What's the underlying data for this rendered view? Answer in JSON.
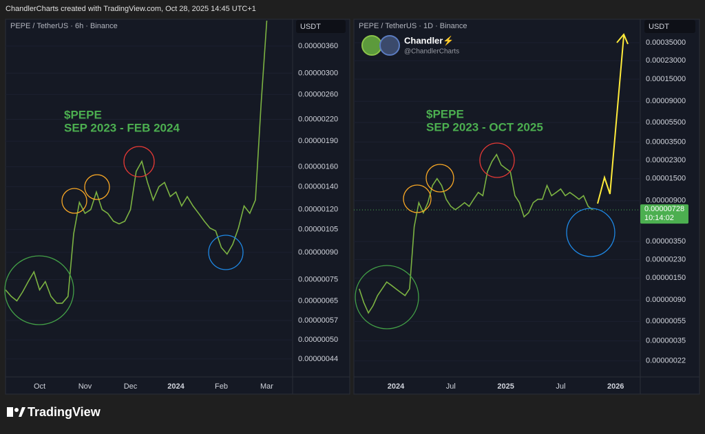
{
  "header": "ChandlerCharts created with TradingView.com, Oct 28, 2025 14:45 UTC+1",
  "footer_logo": "TradingView",
  "author": {
    "name": "Chandler⚡",
    "handle": "@ChandlerCharts"
  },
  "chart_data": [
    {
      "type": "line",
      "title": "PEPE / TetherUS · 6h · Binance",
      "axis_label": "USDT",
      "annotations": [
        "$PEPE",
        "SEP 2023 - FEB 2024"
      ],
      "log_scale": true,
      "grid": true,
      "color": "#7cb342",
      "categories": [
        null,
        null,
        null,
        null,
        null,
        null,
        "Oct",
        null,
        null,
        null,
        null,
        null,
        null,
        null,
        "Nov",
        null,
        null,
        null,
        null,
        null,
        null,
        null,
        "Dec",
        null,
        null,
        null,
        null,
        null,
        null,
        null,
        "2024",
        null,
        null,
        null,
        null,
        null,
        null,
        null,
        "Feb",
        null,
        null,
        null,
        null,
        null,
        null,
        null,
        "Mar"
      ],
      "values": [
        7e-07,
        6.7e-07,
        6.5e-07,
        6.9e-07,
        7.4e-07,
        7.9e-07,
        7e-07,
        7.4e-07,
        6.7e-07,
        6.4e-07,
        6.4e-07,
        6.7e-07,
        1.02e-06,
        1.26e-06,
        1.17e-06,
        1.2e-06,
        1.35e-06,
        1.2e-06,
        1.17e-06,
        1.11e-06,
        1.09e-06,
        1.11e-06,
        1.2e-06,
        1.55e-06,
        1.66e-06,
        1.44e-06,
        1.28e-06,
        1.4e-06,
        1.44e-06,
        1.31e-06,
        1.35e-06,
        1.23e-06,
        1.31e-06,
        1.23e-06,
        1.17e-06,
        1.11e-06,
        1.06e-06,
        1.04e-06,
        9.3e-07,
        8.9e-07,
        9.5e-07,
        1.06e-06,
        1.23e-06,
        1.17e-06,
        1.28e-06,
        2.45e-06,
        4.27e-06
      ],
      "ylim": [
        3.9e-07,
        4.31e-06
      ],
      "yticks": [
        {
          "value": 3.6e-06,
          "label": "0.00000360"
        },
        {
          "value": 3e-06,
          "label": "0.00000300"
        },
        {
          "value": 2.6e-06,
          "label": "0.00000260"
        },
        {
          "value": 2.2e-06,
          "label": "0.00000220"
        },
        {
          "value": 1.9e-06,
          "label": "0.00000190"
        },
        {
          "value": 1.6e-06,
          "label": "0.00000160"
        },
        {
          "value": 1.4e-06,
          "label": "0.00000140"
        },
        {
          "value": 1.2e-06,
          "label": "0.00000120"
        },
        {
          "value": 1.05e-06,
          "label": "0.00000105"
        },
        {
          "value": 9e-07,
          "label": "0.00000090"
        },
        {
          "value": 7.5e-07,
          "label": "0.00000075"
        },
        {
          "value": 6.5e-07,
          "label": "0.00000065"
        },
        {
          "value": 5.7e-07,
          "label": "0.00000057"
        },
        {
          "value": 5e-07,
          "label": "0.00000050"
        },
        {
          "value": 4.4e-07,
          "label": "0.00000044"
        }
      ]
    },
    {
      "type": "line",
      "title": "PEPE / TetherUS · 1D · Binance",
      "axis_label": "USDT",
      "annotations": [
        "$PEPE",
        "SEP 2023 - OCT 2025"
      ],
      "log_scale": true,
      "grid": true,
      "color": "#7cb342",
      "categories": [
        null,
        null,
        null,
        null,
        null,
        null,
        null,
        null,
        "2024",
        null,
        null,
        null,
        null,
        null,
        null,
        null,
        null,
        null,
        null,
        null,
        "Jul",
        null,
        null,
        null,
        null,
        null,
        null,
        null,
        null,
        null,
        null,
        null,
        "2025",
        null,
        null,
        null,
        null,
        null,
        null,
        null,
        null,
        null,
        null,
        null,
        "Jul",
        null,
        null,
        null,
        null,
        null,
        null,
        null,
        null,
        null,
        null,
        null,
        "2026",
        null,
        null,
        null,
        null,
        null
      ],
      "values": [
        1.17e-06,
        8.5e-07,
        6.7e-07,
        7.9e-07,
        1e-06,
        1.17e-06,
        1.37e-06,
        1.27e-06,
        1.17e-06,
        1.08e-06,
        1e-06,
        1.17e-06,
        4.9e-06,
        8.6e-06,
        6.8e-06,
        8.6e-06,
        1.28e-05,
        1.5e-05,
        1.28e-05,
        9.3e-06,
        7.9e-06,
        7.3e-06,
        7.9e-06,
        8.6e-06,
        7.9e-06,
        9.3e-06,
        1.09e-05,
        1.01e-05,
        1.76e-05,
        2.23e-05,
        2.62e-05,
        2.06e-05,
        1.9e-05,
        1.76e-05,
        1.01e-05,
        8.6e-06,
        6.2e-06,
        6.8e-06,
        8.6e-06,
        9.3e-06,
        9.3e-06,
        1.28e-05,
        1.01e-05,
        1.09e-05,
        1.18e-05,
        1.01e-05,
        1.09e-05,
        1.01e-05,
        9.3e-06,
        1.01e-05,
        7.9e-06,
        7.3e-06,
        null,
        null,
        null,
        null,
        null,
        null,
        null,
        null,
        null,
        null
      ],
      "last_price": {
        "value": 7.28e-06,
        "label": "0.00000728"
      },
      "countdown": "10:14:02",
      "ylim": [
        1.52e-07,
        0.000601
      ],
      "yticks": [
        {
          "value": 0.00035,
          "label": "0.00035000"
        },
        {
          "value": 0.00023,
          "label": "0.00023000"
        },
        {
          "value": 0.00015,
          "label": "0.00015000"
        },
        {
          "value": 9e-05,
          "label": "0.00009000"
        },
        {
          "value": 5.5e-05,
          "label": "0.00005500"
        },
        {
          "value": 3.5e-05,
          "label": "0.00003500"
        },
        {
          "value": 2.3e-05,
          "label": "0.00002300"
        },
        {
          "value": 1.5e-05,
          "label": "0.00001500"
        },
        {
          "value": 9e-06,
          "label": "0.00000900"
        },
        {
          "value": 3.5e-06,
          "label": "0.00000350"
        },
        {
          "value": 2.3e-06,
          "label": "0.00000230"
        },
        {
          "value": 1.5e-06,
          "label": "0.00000150"
        },
        {
          "value": 9e-07,
          "label": "0.00000090"
        },
        {
          "value": 5.5e-07,
          "label": "0.00000055"
        },
        {
          "value": 3.5e-07,
          "label": "0.00000035"
        },
        {
          "value": 2.2e-07,
          "label": "0.00000022"
        }
      ]
    }
  ]
}
